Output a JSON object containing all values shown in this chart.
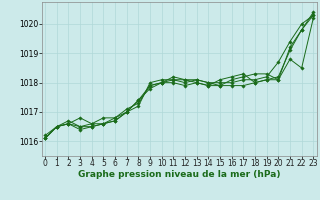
{
  "title": "Graphe pression niveau de la mer (hPa)",
  "xlabel_hours": [
    0,
    1,
    2,
    3,
    4,
    5,
    6,
    7,
    8,
    9,
    10,
    11,
    12,
    13,
    14,
    15,
    16,
    17,
    18,
    19,
    20,
    21,
    22,
    23
  ],
  "series": [
    [
      1016.1,
      1016.5,
      1016.6,
      1016.5,
      1016.5,
      1016.6,
      1016.7,
      1017.0,
      1017.4,
      1017.8,
      1018.0,
      1018.1,
      1018.1,
      1018.0,
      1017.9,
      1017.9,
      1017.9,
      1017.9,
      1018.0,
      1018.1,
      1018.2,
      1019.1,
      1019.8,
      1020.4
    ],
    [
      1016.2,
      1016.5,
      1016.6,
      1016.4,
      1016.5,
      1016.6,
      1016.7,
      1017.0,
      1017.4,
      1017.9,
      1018.0,
      1018.2,
      1018.1,
      1018.1,
      1018.0,
      1017.9,
      1018.1,
      1018.2,
      1018.3,
      1018.3,
      1018.1,
      1018.8,
      1018.5,
      1020.2
    ],
    [
      1016.1,
      1016.5,
      1016.6,
      1016.8,
      1016.6,
      1016.6,
      1016.8,
      1017.1,
      1017.3,
      1017.9,
      1018.0,
      1018.0,
      1017.9,
      1018.0,
      1017.9,
      1018.1,
      1018.2,
      1018.3,
      1018.0,
      1018.1,
      1018.1,
      1019.2,
      1019.8,
      1020.3
    ],
    [
      1016.1,
      1016.5,
      1016.7,
      1016.5,
      1016.6,
      1016.8,
      1016.8,
      1017.0,
      1017.2,
      1018.0,
      1018.1,
      1018.1,
      1018.0,
      1018.1,
      1018.0,
      1018.0,
      1018.0,
      1018.1,
      1018.1,
      1018.2,
      1018.7,
      1019.4,
      1020.0,
      1020.3
    ]
  ],
  "line_color": "#1a6b1a",
  "marker": "D",
  "marker_size": 1.8,
  "linewidth": 0.7,
  "ylim": [
    1015.5,
    1020.75
  ],
  "yticks": [
    1016,
    1017,
    1018,
    1019,
    1020
  ],
  "xlim": [
    -0.3,
    23.3
  ],
  "bg_color": "#cceaea",
  "grid_color": "#b0d8d8",
  "title_fontsize": 6.5,
  "tick_fontsize": 5.5,
  "title_color": "#1a6b1a"
}
